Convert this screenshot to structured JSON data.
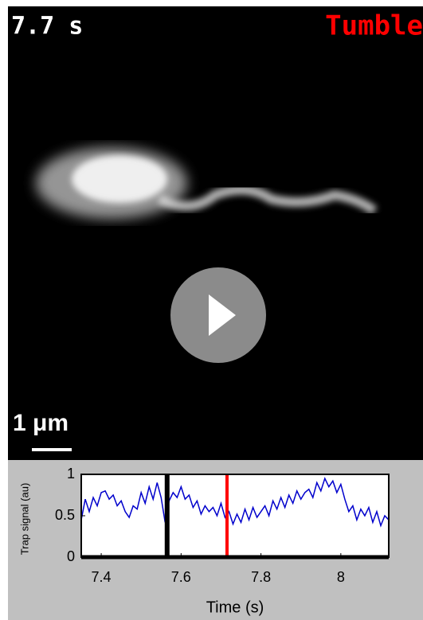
{
  "overlay": {
    "time": "7.7 s",
    "state": "Tumble",
    "scale_bar": "1 μm"
  },
  "chart_data": {
    "type": "line",
    "x_label": "Time (s)",
    "y_label": "Trap signal (au)",
    "xlim": [
      7.35,
      8.12
    ],
    "ylim": [
      0,
      1
    ],
    "xticks": [
      7.4,
      7.6,
      7.8,
      8
    ],
    "yticks": [
      0,
      0.5,
      1
    ],
    "x": [
      7.35,
      7.36,
      7.37,
      7.38,
      7.39,
      7.4,
      7.41,
      7.42,
      7.43,
      7.44,
      7.45,
      7.46,
      7.47,
      7.48,
      7.49,
      7.5,
      7.51,
      7.52,
      7.53,
      7.54,
      7.55,
      7.56,
      7.57,
      7.58,
      7.59,
      7.6,
      7.61,
      7.62,
      7.63,
      7.64,
      7.65,
      7.66,
      7.67,
      7.68,
      7.69,
      7.7,
      7.71,
      7.72,
      7.73,
      7.74,
      7.75,
      7.76,
      7.77,
      7.78,
      7.79,
      7.8,
      7.81,
      7.82,
      7.83,
      7.84,
      7.85,
      7.86,
      7.87,
      7.88,
      7.89,
      7.9,
      7.91,
      7.92,
      7.93,
      7.94,
      7.95,
      7.96,
      7.97,
      7.98,
      7.99,
      8.0,
      8.01,
      8.02,
      8.03,
      8.04,
      8.05,
      8.06,
      8.07,
      8.08,
      8.09,
      8.1,
      8.11,
      8.12
    ],
    "series": [
      {
        "color": "#0000cc",
        "values": [
          0.45,
          0.7,
          0.55,
          0.72,
          0.62,
          0.78,
          0.8,
          0.7,
          0.75,
          0.62,
          0.68,
          0.55,
          0.48,
          0.62,
          0.58,
          0.78,
          0.65,
          0.85,
          0.7,
          0.9,
          0.72,
          0.42,
          0.68,
          0.78,
          0.72,
          0.85,
          0.7,
          0.75,
          0.6,
          0.68,
          0.52,
          0.62,
          0.55,
          0.6,
          0.5,
          0.65,
          0.48,
          0.55,
          0.4,
          0.52,
          0.42,
          0.58,
          0.45,
          0.6,
          0.48,
          0.55,
          0.62,
          0.5,
          0.68,
          0.58,
          0.72,
          0.6,
          0.75,
          0.65,
          0.8,
          0.7,
          0.78,
          0.82,
          0.72,
          0.9,
          0.8,
          0.95,
          0.85,
          0.92,
          0.78,
          0.88,
          0.7,
          0.55,
          0.62,
          0.45,
          0.58,
          0.5,
          0.6,
          0.42,
          0.55,
          0.38,
          0.5,
          0.45
        ]
      }
    ],
    "markers": [
      {
        "x": 7.565,
        "color": "#000000"
      },
      {
        "x": 7.715,
        "color": "#ff0000"
      }
    ]
  }
}
